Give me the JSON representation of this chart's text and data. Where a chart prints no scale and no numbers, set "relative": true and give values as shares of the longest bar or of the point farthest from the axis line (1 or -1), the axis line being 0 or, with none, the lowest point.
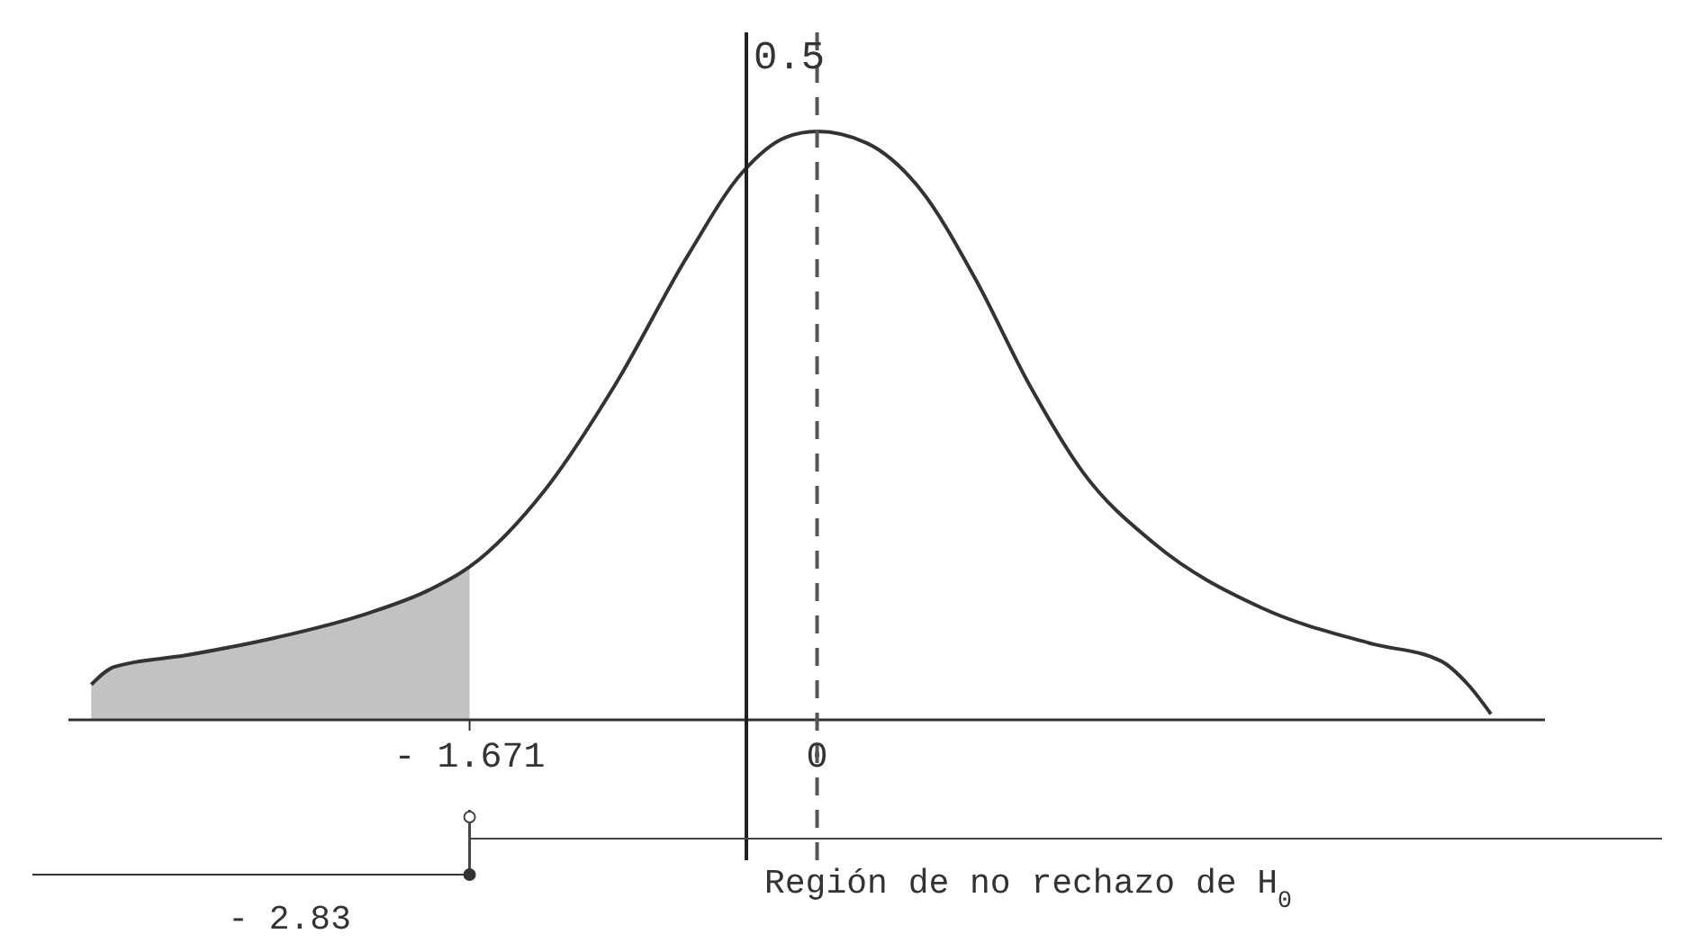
{
  "chart_data": {
    "type": "line",
    "relative": true,
    "xlim": [
      -3.6,
      3.5
    ],
    "xticks": [
      {
        "value": -1.671,
        "label": "- 1.671"
      },
      {
        "value": 0,
        "label": "0"
      }
    ],
    "series": [
      {
        "type": "area",
        "color": "#9a9a9a",
        "x": [
          -3.49,
          -3.38,
          -3.03,
          -2.6,
          -2.17,
          -1.87,
          -1.671
        ],
        "values": [
          0.06,
          0.09,
          0.11,
          0.14,
          0.18,
          0.22,
          0.26
        ]
      },
      {
        "type": "line",
        "color": "#333333",
        "x": [
          -3.49,
          -3.38,
          -3.03,
          -2.6,
          -2.17,
          -1.87,
          -1.671,
          -1.31,
          -0.97,
          -0.62,
          -0.36,
          -0.15,
          0,
          0.24,
          0.5,
          0.76,
          1.02,
          1.28,
          1.62,
          2.14,
          2.66,
          3.0,
          3.13,
          3.24
        ],
        "values": [
          0.06,
          0.09,
          0.11,
          0.14,
          0.18,
          0.22,
          0.26,
          0.39,
          0.57,
          0.79,
          0.93,
          0.99,
          1,
          0.98,
          0.9,
          0.75,
          0.57,
          0.42,
          0.3,
          0.19,
          0.13,
          0.1,
          0.06,
          0.01
        ]
      }
    ],
    "ref_lines": [
      {
        "axis": "x",
        "value": 0,
        "line_style": "dashed",
        "color": "#555555"
      },
      {
        "axis": "x",
        "value": -0.34,
        "line_style": "solid",
        "color": "#222222"
      }
    ],
    "annotations": [
      "0.5",
      "- 2.83",
      "Región de no rechazo de H$_{0}$"
    ]
  }
}
